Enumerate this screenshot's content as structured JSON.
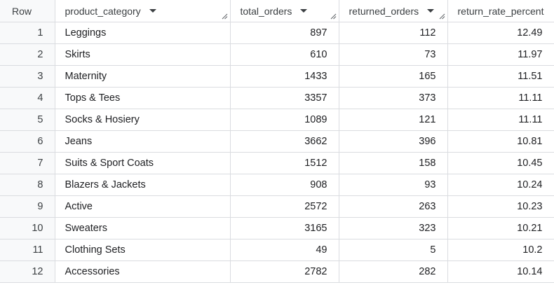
{
  "columns": {
    "row": "Row",
    "product_category": "product_category",
    "total_orders": "total_orders",
    "returned_orders": "returned_orders",
    "return_rate_percent": "return_rate_percent"
  },
  "icons": {
    "sort": "chevron-down-icon",
    "resize": "column-resize-handle-icon"
  },
  "colors": {
    "header_text": "#3c4043",
    "gridline": "#dadce0",
    "rownum_bg": "#f8f9fa"
  },
  "rows": [
    {
      "row": "1",
      "product_category": "Leggings",
      "total_orders": "897",
      "returned_orders": "112",
      "return_rate_percent": "12.49"
    },
    {
      "row": "2",
      "product_category": "Skirts",
      "total_orders": "610",
      "returned_orders": "73",
      "return_rate_percent": "11.97"
    },
    {
      "row": "3",
      "product_category": "Maternity",
      "total_orders": "1433",
      "returned_orders": "165",
      "return_rate_percent": "11.51"
    },
    {
      "row": "4",
      "product_category": "Tops & Tees",
      "total_orders": "3357",
      "returned_orders": "373",
      "return_rate_percent": "11.11"
    },
    {
      "row": "5",
      "product_category": "Socks & Hosiery",
      "total_orders": "1089",
      "returned_orders": "121",
      "return_rate_percent": "11.11"
    },
    {
      "row": "6",
      "product_category": "Jeans",
      "total_orders": "3662",
      "returned_orders": "396",
      "return_rate_percent": "10.81"
    },
    {
      "row": "7",
      "product_category": "Suits & Sport Coats",
      "total_orders": "1512",
      "returned_orders": "158",
      "return_rate_percent": "10.45"
    },
    {
      "row": "8",
      "product_category": "Blazers & Jackets",
      "total_orders": "908",
      "returned_orders": "93",
      "return_rate_percent": "10.24"
    },
    {
      "row": "9",
      "product_category": "Active",
      "total_orders": "2572",
      "returned_orders": "263",
      "return_rate_percent": "10.23"
    },
    {
      "row": "10",
      "product_category": "Sweaters",
      "total_orders": "3165",
      "returned_orders": "323",
      "return_rate_percent": "10.21"
    },
    {
      "row": "11",
      "product_category": "Clothing Sets",
      "total_orders": "49",
      "returned_orders": "5",
      "return_rate_percent": "10.2"
    },
    {
      "row": "12",
      "product_category": "Accessories",
      "total_orders": "2782",
      "returned_orders": "282",
      "return_rate_percent": "10.14"
    }
  ]
}
